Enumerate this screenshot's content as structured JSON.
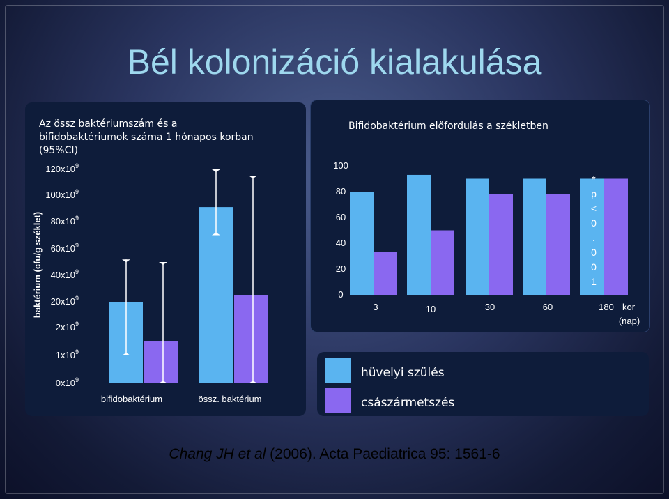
{
  "title": "Bél kolonizáció kialakulása",
  "citation": {
    "authors": "Chang JH et al",
    "rest": " (2006). Acta Paediatrica 95: 1561-6"
  },
  "colors": {
    "vaginal": "#5ab4f0",
    "cesarean": "#8a68f0",
    "title": "#9ed8ee"
  },
  "legend": {
    "items": [
      "hüvelyi szülés",
      "császármetszés"
    ]
  },
  "chart_data": [
    {
      "type": "bar",
      "title": "Az össz baktériumszám és a bifidobaktériumok száma 1 hónapos korban (95%CI)",
      "ylabel": "baktérium (cfu/g széklet)",
      "ytick_labels": [
        {
          "base": "0x10",
          "exp": "9"
        },
        {
          "base": "1x10",
          "exp": "9"
        },
        {
          "base": "2x10",
          "exp": "9"
        },
        {
          "base": "20x10",
          "exp": "9"
        },
        {
          "base": "40x10",
          "exp": "9"
        },
        {
          "base": "60x10",
          "exp": "9"
        },
        {
          "base": "80x10",
          "exp": "9"
        },
        {
          "base": "100x10",
          "exp": "9"
        },
        {
          "base": "120x10",
          "exp": "9"
        }
      ],
      "categories": [
        "bifidobaktérium",
        "össz. baktérium"
      ],
      "series": [
        {
          "values": [
            20,
            91
          ],
          "ci_low": [
            1,
            70
          ],
          "ci_high": [
            52,
            122
          ]
        },
        {
          "values": [
            1.5,
            25
          ],
          "ci_low": [
            0,
            0
          ],
          "ci_high": [
            50,
            115
          ]
        }
      ]
    },
    {
      "type": "bar",
      "title": "Bifidobaktérium előfordulás a székletben",
      "categories": [
        "3",
        "10",
        "30",
        "60",
        "180"
      ],
      "xlabel": "kor (nap)",
      "yticks": [
        0,
        20,
        40,
        60,
        80,
        100
      ],
      "ylim": [
        0,
        100
      ],
      "series": [
        {
          "values": [
            80,
            93,
            90,
            90,
            90
          ]
        },
        {
          "values": [
            33,
            50,
            78,
            78,
            90
          ]
        }
      ],
      "annotation": "* p < 0 . 0 0 1"
    }
  ]
}
